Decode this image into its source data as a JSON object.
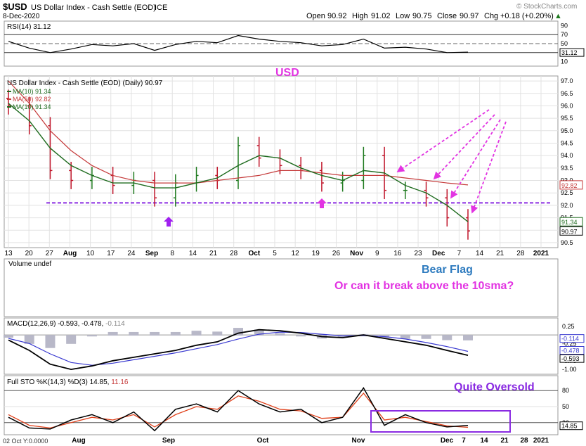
{
  "header": {
    "symbol": "$USD",
    "name": "US Dollar Index - Cash Settle (EOD)",
    "exchange": "ICE",
    "date": "8-Dec-2020",
    "watermark": "© StockCharts.com",
    "open_label": "Open",
    "open": "90.92",
    "high_label": "High",
    "high": "91.02",
    "low_label": "Low",
    "low": "90.75",
    "close_label": "Close",
    "close": "90.97",
    "chg_label": "Chg",
    "chg": "+0.18 (+0.20%)",
    "chg_arrow": "▲"
  },
  "colors": {
    "bg": "#ffffff",
    "grid": "#e2e2e2",
    "panel_bg": "#fffef4",
    "up_bar": "#1f7a1f",
    "down_bar": "#c0152a",
    "ma10": "#1e6b1e",
    "ma50": "#c53a3a",
    "annotation_magenta": "#e233e2",
    "annotation_blue": "#2e7bbf",
    "purple": "#8a2be2",
    "macd": "#000000",
    "signal": "#3a3ad0"
  },
  "rsi": {
    "legend": "RSI(14) 31.12",
    "current_label": "31.12",
    "ticks": [
      "90",
      "70",
      "50",
      "30",
      "10"
    ],
    "levels": [
      70,
      30
    ]
  },
  "price_panel": {
    "title": "US Dollar Index - Cash Settle (EOD) (Daily) 90.97",
    "legend": [
      {
        "label": "MA(10) 91.34",
        "color": "#1e6b1e"
      },
      {
        "label": "MA(50) 92.82",
        "color": "#c53a3a"
      },
      {
        "label": "MA(10) 91.34",
        "color": "#1e6b1e"
      }
    ],
    "ticks": [
      "97.0",
      "96.5",
      "96.0",
      "95.5",
      "95.0",
      "94.5",
      "94.0",
      "93.5",
      "93.0",
      "92.5",
      "92.0",
      "91.5",
      "91.0",
      "90.5"
    ],
    "flags": [
      {
        "label": "92.82",
        "color": "#c53a3a"
      },
      {
        "label": "91.34",
        "color": "#1e6b1e"
      },
      {
        "label": "90.97",
        "color": "#000000"
      }
    ],
    "support_level": 92.1
  },
  "x_axis": {
    "labels": [
      "13",
      "20",
      "27",
      "Aug",
      "10",
      "17",
      "24",
      "Sep",
      "8",
      "14",
      "21",
      "28",
      "Oct",
      "5",
      "12",
      "19",
      "26",
      "Nov",
      "9",
      "16",
      "23",
      "Dec",
      "7",
      "14",
      "21",
      "28",
      "2021"
    ]
  },
  "volume": {
    "legend": "Volume undef"
  },
  "annotations": {
    "title": "USD",
    "bear_flag": "Bear Flag",
    "question": "Or can it break above the 10sma?",
    "oversold": "Quite Oversold"
  },
  "macd": {
    "legend_main": "MACD(12,26,9) -0.593, -0.478, ",
    "legend_hist": "-0.114",
    "ticks": [
      "0.25",
      "-0.25",
      "-0.75",
      "-1.00"
    ],
    "flags": [
      {
        "label": "-0.114",
        "color": "#3a3ad0"
      },
      {
        "label": "-0.478",
        "color": "#3a3ad0"
      },
      {
        "label": "-0.593",
        "color": "#000000"
      }
    ]
  },
  "sto": {
    "legend_main": "Full STO %K(14,3) %D(3) 14.85, ",
    "legend_d": "11.16",
    "ticks": [
      "80",
      "50",
      "20"
    ],
    "current_label": "14.85",
    "levels": [
      80,
      20
    ]
  },
  "bottom_axis": {
    "left_label": "02 Oct Y:0.0000",
    "labels": [
      "Aug",
      "Sep",
      "Oct",
      "Nov",
      "Dec",
      "7",
      "14",
      "21",
      "28",
      "2021"
    ]
  },
  "chart_data": {
    "type": "line",
    "title": "US Dollar Index - Cash Settle (EOD) (Daily) 90.97",
    "ylim": [
      90.3,
      97.2
    ],
    "series": [
      {
        "name": "MA(10) 91.34"
      },
      {
        "name": "MA(50) 92.82"
      }
    ],
    "x": [
      "Jul 13",
      "Jul 20",
      "Jul 27",
      "Aug",
      "Aug 10",
      "Aug 17",
      "Aug 24",
      "Sep",
      "Sep 8",
      "Sep 14",
      "Sep 21",
      "Sep 28",
      "Oct",
      "Oct 5",
      "Oct 12",
      "Oct 19",
      "Oct 26",
      "Nov",
      "Nov 9",
      "Nov 16",
      "Nov 23",
      "Dec",
      "Dec 7"
    ],
    "close": [
      96.0,
      95.2,
      93.4,
      93.0,
      93.2,
      92.8,
      93.0,
      92.3,
      92.9,
      93.2,
      93.0,
      94.4,
      93.9,
      93.6,
      93.4,
      92.9,
      93.0,
      94.0,
      92.6,
      92.6,
      92.3,
      91.5,
      90.97
    ],
    "ma50": [
      97.0,
      96.1,
      95.0,
      94.2,
      93.6,
      93.2,
      93.0,
      92.9,
      92.9,
      92.9,
      93.0,
      93.1,
      93.2,
      93.4,
      93.4,
      93.3,
      93.2,
      93.2,
      93.2,
      93.1,
      93.0,
      92.9,
      92.82
    ],
    "ma10": [
      96.1,
      95.4,
      94.3,
      93.6,
      93.2,
      92.9,
      92.9,
      92.7,
      92.7,
      92.9,
      93.1,
      93.6,
      94.0,
      93.9,
      93.5,
      93.2,
      93.0,
      93.4,
      93.3,
      92.8,
      92.5,
      92.0,
      91.34
    ],
    "rsi": [
      55,
      40,
      30,
      38,
      48,
      45,
      50,
      35,
      48,
      55,
      52,
      68,
      60,
      55,
      52,
      45,
      48,
      60,
      40,
      42,
      38,
      30,
      31.12
    ],
    "macd": [
      -0.15,
      -0.45,
      -0.85,
      -1.0,
      -0.9,
      -0.75,
      -0.65,
      -0.55,
      -0.45,
      -0.3,
      -0.2,
      0.05,
      0.15,
      0.12,
      0.05,
      -0.05,
      -0.08,
      0.0,
      -0.1,
      -0.2,
      -0.3,
      -0.45,
      -0.593
    ],
    "signal": [
      -0.1,
      -0.25,
      -0.55,
      -0.8,
      -0.88,
      -0.82,
      -0.72,
      -0.62,
      -0.52,
      -0.4,
      -0.28,
      -0.12,
      0.02,
      0.08,
      0.07,
      0.02,
      -0.03,
      -0.02,
      -0.05,
      -0.12,
      -0.22,
      -0.34,
      -0.478
    ],
    "sto_k": [
      30,
      10,
      8,
      25,
      35,
      20,
      40,
      5,
      45,
      55,
      40,
      80,
      55,
      40,
      45,
      20,
      30,
      85,
      15,
      35,
      20,
      12,
      14.85
    ],
    "sto_d": [
      35,
      15,
      10,
      20,
      30,
      25,
      35,
      12,
      35,
      50,
      45,
      70,
      60,
      45,
      42,
      28,
      30,
      75,
      25,
      30,
      22,
      14,
      11.16
    ],
    "support": 92.1
  }
}
